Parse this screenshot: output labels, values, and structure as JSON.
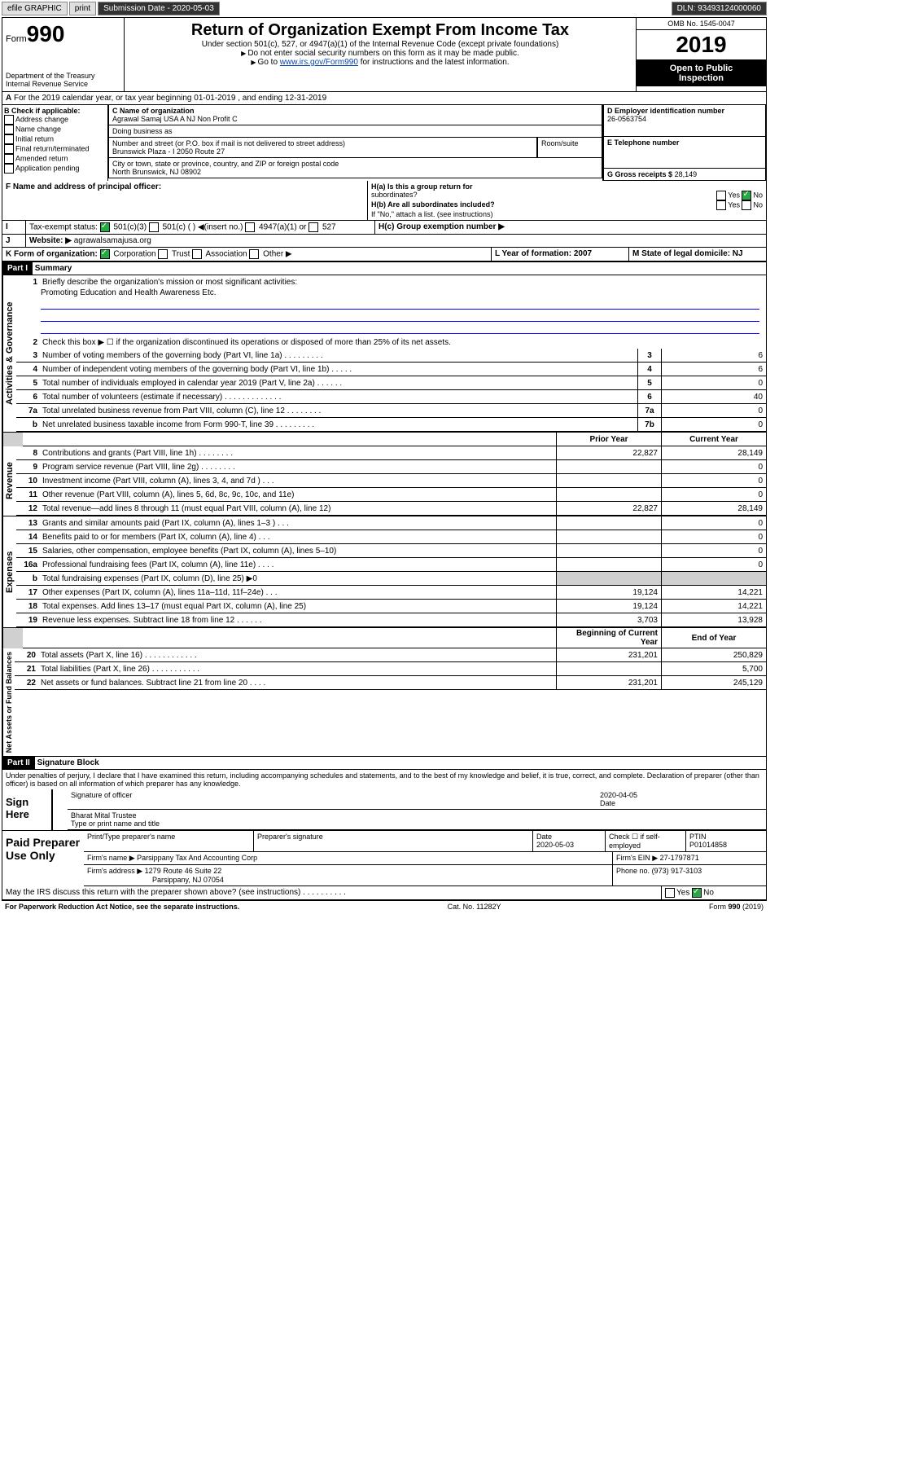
{
  "toolbar": {
    "efile": "efile GRAPHIC",
    "print": "print",
    "subdate_label": "Submission Date - 2020-05-03",
    "dln": "DLN: 93493124000060"
  },
  "header": {
    "form_word": "Form",
    "form_num": "990",
    "dept": "Department of the Treasury",
    "irs": "Internal Revenue Service",
    "title": "Return of Organization Exempt From Income Tax",
    "sub1": "Under section 501(c), 527, or 4947(a)(1) of the Internal Revenue Code (except private foundations)",
    "sub2": "Do not enter social security numbers on this form as it may be made public.",
    "sub3": "Go to",
    "sub3_link": "www.irs.gov/Form990",
    "sub3_tail": " for instructions and the latest information.",
    "omb": "OMB No. 1545-0047",
    "year": "2019",
    "otp1": "Open to Public",
    "otp2": "Inspection"
  },
  "A": {
    "text": "For the 2019 calendar year, or tax year beginning 01-01-2019    , and ending 12-31-2019"
  },
  "B": {
    "label": "B Check if applicable:",
    "items": [
      "Address change",
      "Name change",
      "Initial return",
      "Final return/terminated",
      "Amended return",
      "Application pending"
    ]
  },
  "C": {
    "label": "C Name of organization",
    "org": "Agrawal Samaj USA A NJ Non Profit C",
    "dba": "Doing business as",
    "addr_label": "Number and street (or P.O. box if mail is not delivered to street address)",
    "room": "Room/suite",
    "addr": "Brunswick Plaza - I 2050 Route 27",
    "city_label": "City or town, state or province, country, and ZIP or foreign postal code",
    "city": "North Brunswick, NJ  08902"
  },
  "D": {
    "label": "D Employer identification number",
    "val": "26-0563754"
  },
  "E": {
    "label": "E Telephone number"
  },
  "G": {
    "label": "G Gross receipts $",
    "val": "28,149"
  },
  "F": {
    "label": "F  Name and address of principal officer:"
  },
  "H": {
    "a": "H(a)  Is this a group return for",
    "a2": "subordinates?",
    "b": "H(b)  Are all subordinates included?",
    "b2": "If \"No,\" attach a list. (see instructions)",
    "c": "H(c)  Group exemption number ▶",
    "yes": "Yes",
    "no": "No"
  },
  "I": {
    "label": "Tax-exempt status:",
    "opts": [
      "501(c)(3)",
      "501(c) (  ) ◀(insert no.)",
      "4947(a)(1) or",
      "527"
    ]
  },
  "J": {
    "label": "Website: ▶",
    "val": "agrawalsamajusa.org"
  },
  "K": {
    "label": "K Form of organization:",
    "opts": [
      "Corporation",
      "Trust",
      "Association",
      "Other ▶"
    ]
  },
  "L": {
    "label": "L Year of formation: 2007"
  },
  "M": {
    "label": "M State of legal domicile: NJ"
  },
  "part1": {
    "label": "Part I",
    "title": "Summary"
  },
  "summary": {
    "q1": "Briefly describe the organization's mission or most significant activities:",
    "mission": "Promoting Education and Health Awareness Etc.",
    "q2": "Check this box ▶ ☐  if the organization discontinued its operations or disposed of more than 25% of its net assets.",
    "lines": [
      {
        "n": "3",
        "t": "Number of voting members of the governing body (Part VI, line 1a)   .   .   .   .   .   .   .   .   .",
        "box": "3",
        "v": "6"
      },
      {
        "n": "4",
        "t": "Number of independent voting members of the governing body (Part VI, line 1b)   .   .   .   .   .",
        "box": "4",
        "v": "6"
      },
      {
        "n": "5",
        "t": "Total number of individuals employed in calendar year 2019 (Part V, line 2a)   .   .   .   .   .   .",
        "box": "5",
        "v": "0"
      },
      {
        "n": "6",
        "t": "Total number of volunteers (estimate if necessary)   .   .   .   .   .   .   .   .   .   .   .   .   .",
        "box": "6",
        "v": "40"
      },
      {
        "n": "7a",
        "t": "Total unrelated business revenue from Part VIII, column (C), line 12   .   .   .   .   .   .   .   .",
        "box": "7a",
        "v": "0"
      },
      {
        "n": "b",
        "t": "Net unrelated business taxable income from Form 990-T, line 39   .   .   .   .   .   .   .   .   .",
        "box": "7b",
        "v": "0"
      }
    ],
    "py": "Prior Year",
    "cy": "Current Year",
    "rev": [
      {
        "n": "8",
        "t": "Contributions and grants (Part VIII, line 1h)   .   .   .   .   .   .   .   .",
        "p": "22,827",
        "c": "28,149"
      },
      {
        "n": "9",
        "t": "Program service revenue (Part VIII, line 2g)   .   .   .   .   .   .   .   .",
        "p": "",
        "c": "0"
      },
      {
        "n": "10",
        "t": "Investment income (Part VIII, column (A), lines 3, 4, and 7d )   .   .   .",
        "p": "",
        "c": "0"
      },
      {
        "n": "11",
        "t": "Other revenue (Part VIII, column (A), lines 5, 6d, 8c, 9c, 10c, and 11e)",
        "p": "",
        "c": "0"
      },
      {
        "n": "12",
        "t": "Total revenue—add lines 8 through 11 (must equal Part VIII, column (A), line 12)",
        "p": "22,827",
        "c": "28,149"
      }
    ],
    "exp": [
      {
        "n": "13",
        "t": "Grants and similar amounts paid (Part IX, column (A), lines 1–3 )   .   .   .",
        "p": "",
        "c": "0"
      },
      {
        "n": "14",
        "t": "Benefits paid to or for members (Part IX, column (A), line 4)   .   .   .",
        "p": "",
        "c": "0"
      },
      {
        "n": "15",
        "t": "Salaries, other compensation, employee benefits (Part IX, column (A), lines 5–10)",
        "p": "",
        "c": "0"
      },
      {
        "n": "16a",
        "t": "Professional fundraising fees (Part IX, column (A), line 11e)   .   .   .   .",
        "p": "",
        "c": "0"
      },
      {
        "n": "b",
        "t": "Total fundraising expenses (Part IX, column (D), line 25) ▶0",
        "p": "shade",
        "c": "shade"
      },
      {
        "n": "17",
        "t": "Other expenses (Part IX, column (A), lines 11a–11d, 11f–24e)   .   .   .",
        "p": "19,124",
        "c": "14,221"
      },
      {
        "n": "18",
        "t": "Total expenses. Add lines 13–17 (must equal Part IX, column (A), line 25)",
        "p": "19,124",
        "c": "14,221"
      },
      {
        "n": "19",
        "t": "Revenue less expenses. Subtract line 18 from line 12   .   .   .   .   .   .",
        "p": "3,703",
        "c": "13,928"
      }
    ],
    "bcy": "Beginning of Current Year",
    "eoy": "End of Year",
    "net": [
      {
        "n": "20",
        "t": "Total assets (Part X, line 16)   .   .   .   .   .   .   .   .   .   .   .   .",
        "p": "231,201",
        "c": "250,829"
      },
      {
        "n": "21",
        "t": "Total liabilities (Part X, line 26)   .   .   .   .   .   .   .   .   .   .   .",
        "p": "",
        "c": "5,700"
      },
      {
        "n": "22",
        "t": "Net assets or fund balances. Subtract line 21 from line 20   .   .   .   .",
        "p": "231,201",
        "c": "245,129"
      }
    ]
  },
  "vlabels": {
    "gov": "Activities & Governance",
    "rev": "Revenue",
    "exp": "Expenses",
    "net": "Net Assets or Fund Balances"
  },
  "part2": {
    "label": "Part II",
    "title": "Signature Block"
  },
  "perjury": "Under penalties of perjury, I declare that I have examined this return, including accompanying schedules and statements, and to the best of my knowledge and belief, it is true, correct, and complete. Declaration of preparer (other than officer) is based on all information of which preparer has any knowledge.",
  "sign": {
    "here": "Sign Here",
    "sigoff": "Signature of officer",
    "date": "2020-04-05",
    "date_l": "Date",
    "name": "Bharat Mital Trustee",
    "name_l": "Type or print name and title"
  },
  "paid": {
    "label": "Paid Preparer Use Only",
    "pname_l": "Print/Type preparer's name",
    "psig_l": "Preparer's signature",
    "pdate_l": "Date",
    "pdate": "2020-05-03",
    "chk": "Check ☐ if self-employed",
    "ptin_l": "PTIN",
    "ptin": "P01014858",
    "firm_l": "Firm's name   ▶",
    "firm": "Parsippany Tax And Accounting Corp",
    "ein_l": "Firm's EIN ▶",
    "ein": "27-1797871",
    "addr_l": "Firm's address ▶",
    "addr": "1279 Route 46 Suite 22",
    "addr2": "Parsippany, NJ  07054",
    "ph_l": "Phone no.",
    "ph": "(973) 917-3103"
  },
  "discuss": "May the IRS discuss this return with the preparer shown above? (see instructions)   .   .   .   .   .   .   .   .   .   .",
  "footer": {
    "pra": "For Paperwork Reduction Act Notice, see the separate instructions.",
    "cat": "Cat. No. 11282Y",
    "form": "Form 990 (2019)"
  }
}
